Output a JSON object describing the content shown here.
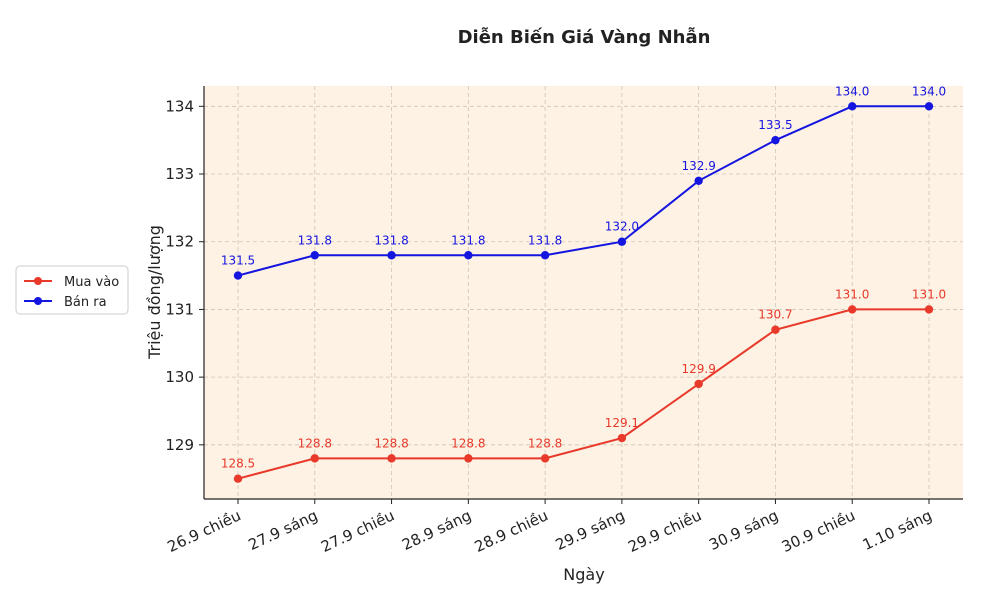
{
  "chart_data": {
    "type": "line",
    "title": "Diễn Biến Giá Vàng Nhẫn",
    "xlabel": "Ngày",
    "ylabel": "Triệu đồng/lượng",
    "categories": [
      "26.9 chiều",
      "27.9 sáng",
      "27.9 chiều",
      "28.9 sáng",
      "28.9 chiều",
      "29.9 sáng",
      "29.9 chiều",
      "30.9 sáng",
      "30.9 chiều",
      "1.10 sáng"
    ],
    "ylim": [
      128.2,
      134.3
    ],
    "yticks": [
      129,
      130,
      131,
      132,
      133,
      134
    ],
    "grid": true,
    "legend_position": "left",
    "background_color": "#fdf2e3",
    "series": [
      {
        "name": "Mua vào",
        "color": "#e8392b",
        "values": [
          128.5,
          128.8,
          128.8,
          128.8,
          128.8,
          129.1,
          129.9,
          130.7,
          131.0,
          131.0
        ]
      },
      {
        "name": "Bán ra",
        "color": "#1515e0",
        "values": [
          131.5,
          131.8,
          131.8,
          131.8,
          131.8,
          132.0,
          132.9,
          133.5,
          134.0,
          134.0
        ]
      }
    ]
  }
}
